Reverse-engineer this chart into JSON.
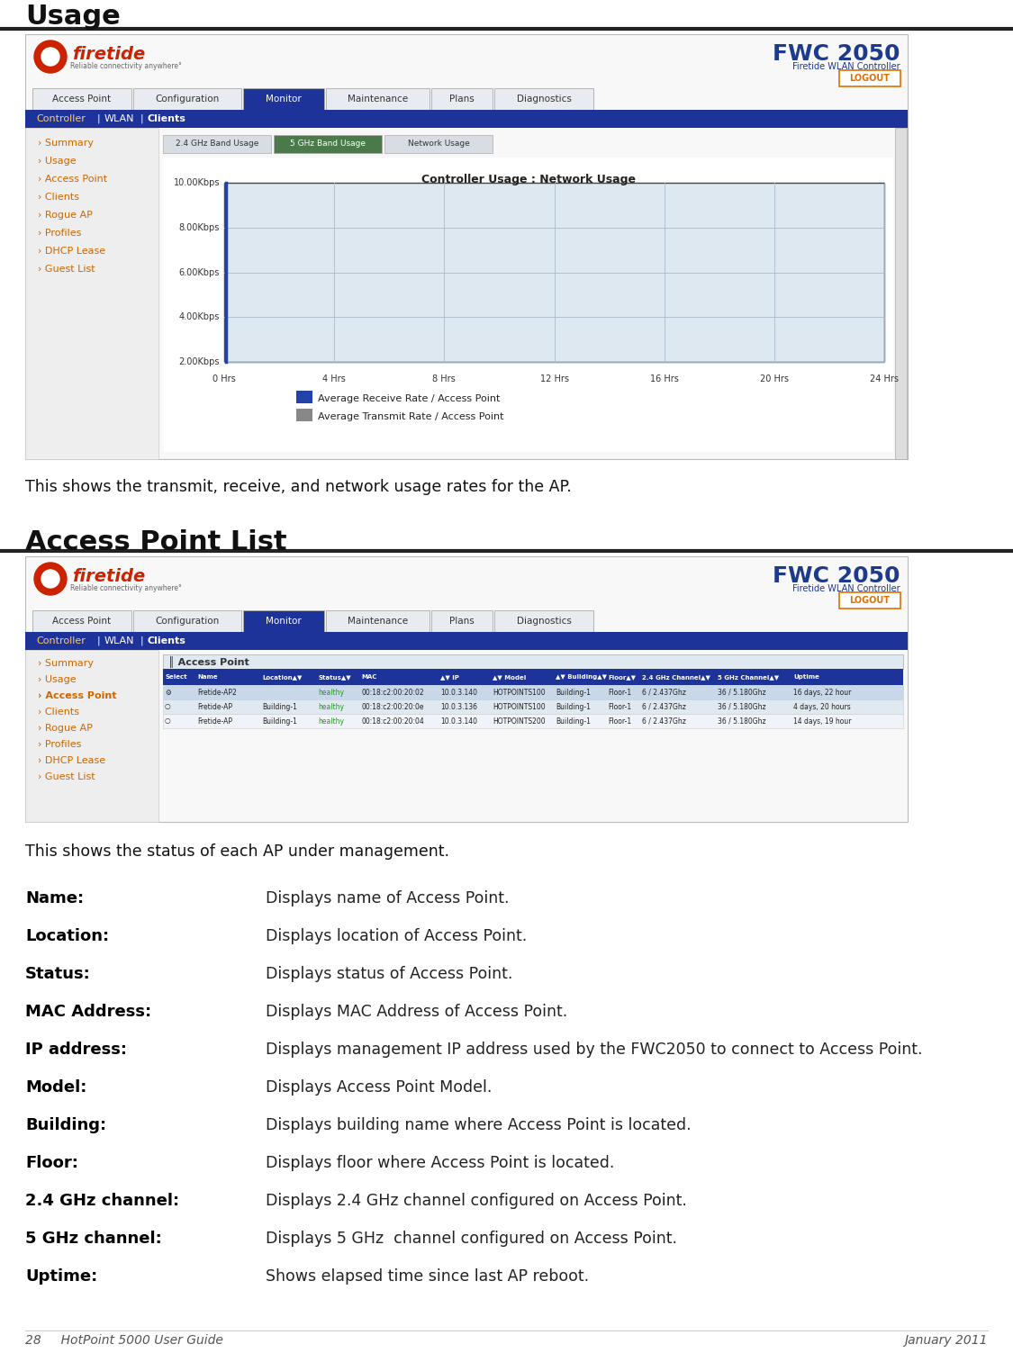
{
  "page_bg": "#ffffff",
  "section1_title": "Usage",
  "section2_title": "Access Point List",
  "usage_desc": "This shows the transmit, receive, and network usage rates for the AP.",
  "ap_list_desc": "This shows the status of each AP under management.",
  "footer_left": "28     HotPoint 5000 User Guide",
  "footer_right": "January 2011",
  "term_items": [
    [
      "Name:",
      "Displays name of Access Point."
    ],
    [
      "Location:",
      "Displays location of Access Point."
    ],
    [
      "Status:",
      "Displays status of Access Point."
    ],
    [
      "MAC Address:",
      "Displays MAC Address of Access Point."
    ],
    [
      "IP address:",
      "Displays management IP address used by the FWC2050 to connect to Access Point."
    ],
    [
      "Model:",
      "Displays Access Point Model."
    ],
    [
      "Building:",
      "Displays building name where Access Point is located."
    ],
    [
      "Floor:",
      "Displays floor where Access Point is located."
    ],
    [
      "2.4 GHz channel:",
      "Displays 2.4 GHz channel configured on Access Point."
    ],
    [
      "5 GHz channel:",
      "Displays 5 GHz  channel configured on Access Point."
    ],
    [
      "Uptime:",
      "Shows elapsed time since last AP reboot."
    ]
  ],
  "firetide_red": "#cc2200",
  "fwc_blue": "#1e3a8a",
  "logout_orange": "#e07000",
  "sidebar_link_color": "#cc6600",
  "sidebar_active_color": "#cc6600",
  "nav_dark_blue": "#1e3399",
  "table_header_bg": "#1e3399",
  "table_row1_bg": "#c8d8e8",
  "table_row2_bg": "#e0e8f0",
  "table_row3_bg": "#f0f4f8",
  "healthy_color": "#229922",
  "chart_area_bg": "#dde8f0",
  "chart_legend_blue": "#2244aa",
  "chart_legend_gray": "#888888"
}
